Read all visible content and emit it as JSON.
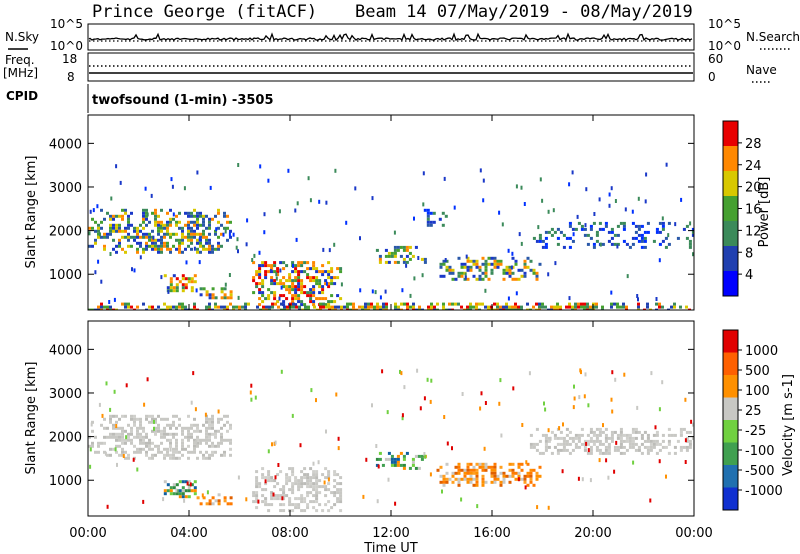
{
  "header": {
    "title": "Prince George (fitACF)",
    "beam": "Beam 14 07/May/2019 - 08/May/2019"
  },
  "summary": {
    "nsky_label": "N.Sky",
    "nsky_top": "10^5",
    "nsky_bottom": "10^0",
    "nsearch_label": "N.Search",
    "nsearch_top": "10^5",
    "nsearch_bottom": "10^0",
    "freq_label": "Freq.",
    "freq_unit": "[MHz]",
    "freq_top": "18",
    "freq_bottom": "8",
    "nave_top": "60",
    "nave_bottom": "0",
    "nave_label": "Nave",
    "cpid_label": "CPID",
    "cpid_text": "twofsound (1-min) -3505"
  },
  "chart_data": [
    {
      "type": "heatmap",
      "title": "",
      "ylabel": "Slant Range [km]",
      "yticks": [
        "1000",
        "2000",
        "3000",
        "4000"
      ],
      "ylim": [
        180,
        4650
      ],
      "colorbar_label": "Power [dB]",
      "colorbar_ticks": [
        "4",
        "8",
        "12",
        "16",
        "20",
        "24",
        "28"
      ],
      "colorbar_range": [
        0,
        32
      ],
      "colors": [
        "#0000ff",
        "#2040b0",
        "#3b8a5a",
        "#45a030",
        "#d8c800",
        "#ff8800",
        "#e80000"
      ],
      "echo_regions": [
        {
          "t0": 0.0,
          "t1": 5.6,
          "r0": 1500,
          "r1": 2500,
          "level": "mid"
        },
        {
          "t0": 3.0,
          "t1": 4.3,
          "r0": 650,
          "r1": 1000,
          "level": "high"
        },
        {
          "t0": 4.3,
          "t1": 5.7,
          "r0": 450,
          "r1": 700,
          "level": "high"
        },
        {
          "t0": 6.5,
          "t1": 10.0,
          "r0": 300,
          "r1": 1300,
          "level": "high"
        },
        {
          "t0": 11.4,
          "t1": 13.4,
          "r0": 1250,
          "r1": 1650,
          "level": "mid"
        },
        {
          "t0": 13.3,
          "t1": 14.2,
          "r0": 2100,
          "r1": 2500,
          "level": "low"
        },
        {
          "t0": 13.8,
          "t1": 17.9,
          "r0": 900,
          "r1": 1400,
          "level": "mid"
        },
        {
          "t0": 17.5,
          "t1": 24.0,
          "r0": 1600,
          "r1": 2200,
          "level": "low"
        },
        {
          "t0": 0.0,
          "t1": 24.0,
          "r0": 180,
          "r1": 350,
          "level": "ground"
        }
      ]
    },
    {
      "type": "heatmap",
      "title": "",
      "xlabel": "Time UT",
      "xticks": [
        "00:00",
        "04:00",
        "08:00",
        "12:00",
        "16:00",
        "20:00",
        "00:00"
      ],
      "xlim": [
        0,
        24
      ],
      "ylabel": "Slant Range [km]",
      "yticks": [
        "1000",
        "2000",
        "3000",
        "4000"
      ],
      "ylim": [
        180,
        4650
      ],
      "colorbar_label": "Velocity [m s-1]",
      "colorbar_ticks": [
        "1000",
        "500",
        "100",
        "25",
        "-25",
        "-100",
        "-500",
        "-1000"
      ],
      "colors": [
        "#1030d0",
        "#2070b0",
        "#40a050",
        "#70d040",
        "#c8c8c4",
        "#ff9000",
        "#ff6000",
        "#e00000"
      ],
      "echo_regions": [
        {
          "t0": 0.0,
          "t1": 5.6,
          "r0": 1500,
          "r1": 2500,
          "level": "ground"
        },
        {
          "t0": 3.0,
          "t1": 4.3,
          "r0": 650,
          "r1": 1000,
          "level": "green"
        },
        {
          "t0": 4.3,
          "t1": 5.7,
          "r0": 450,
          "r1": 700,
          "level": "orange"
        },
        {
          "t0": 6.5,
          "t1": 10.0,
          "r0": 300,
          "r1": 1300,
          "level": "ground"
        },
        {
          "t0": 11.4,
          "t1": 13.4,
          "r0": 1250,
          "r1": 1650,
          "level": "green"
        },
        {
          "t0": 13.8,
          "t1": 17.9,
          "r0": 900,
          "r1": 1400,
          "level": "orange"
        },
        {
          "t0": 17.5,
          "t1": 24.0,
          "r0": 1600,
          "r1": 2200,
          "level": "ground"
        }
      ]
    }
  ]
}
